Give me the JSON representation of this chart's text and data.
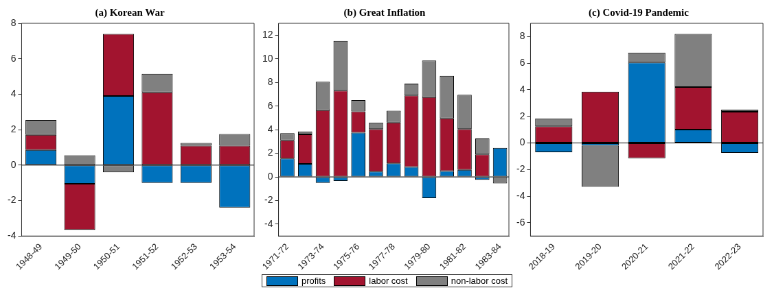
{
  "chart_data": [
    {
      "type": "bar",
      "title": "(a) Korean War",
      "stacked": true,
      "categories": [
        "1948-49",
        "1949-50",
        "1950-51",
        "1951-52",
        "1952-53",
        "1953-54"
      ],
      "ylim": [
        -4,
        8
      ],
      "yticks": [
        -4,
        -2,
        0,
        2,
        4,
        6,
        8
      ],
      "grid": false,
      "ref_lines": [
        {
          "axis": "y",
          "value": 0,
          "color": "#000000"
        }
      ],
      "series": [
        {
          "color": "#0072bd",
          "values": [
            0.85,
            -1.05,
            3.9,
            -1.0,
            -1.0,
            -2.4
          ]
        },
        {
          "color": "#a2142f",
          "values": [
            0.85,
            -2.6,
            3.5,
            4.1,
            1.1,
            1.1
          ]
        },
        {
          "color": "#808080",
          "values": [
            0.85,
            0.55,
            -0.4,
            1.05,
            0.15,
            0.65
          ]
        }
      ]
    },
    {
      "type": "bar",
      "title": "(b) Great Inflation",
      "stacked": true,
      "categories": [
        "1971-72",
        null,
        "1973-74",
        null,
        "1975-76",
        null,
        "1977-78",
        null,
        "1979-80",
        null,
        "1981-82",
        null,
        "1983-84"
      ],
      "ylim": [
        -5,
        13
      ],
      "yticks": [
        -4,
        -2,
        0,
        2,
        4,
        6,
        8,
        10,
        12
      ],
      "grid": false,
      "legend": "bottom",
      "ref_lines": [
        {
          "axis": "y",
          "value": 0,
          "color": "#000000"
        }
      ],
      "series": [
        {
          "name": "profits",
          "color": "#0072bd",
          "values": [
            1.55,
            1.1,
            -0.5,
            -0.35,
            3.75,
            0.45,
            1.15,
            0.85,
            -1.8,
            0.5,
            0.6,
            -0.25,
            2.45
          ]
        },
        {
          "name": "labor cost",
          "color": "#a2142f",
          "values": [
            1.55,
            2.5,
            5.65,
            7.3,
            1.8,
            3.6,
            3.45,
            6.05,
            6.75,
            4.45,
            3.45,
            1.9,
            0
          ]
        },
        {
          "name": "non-labor cost",
          "color": "#808080",
          "values": [
            0.6,
            0.25,
            2.4,
            4.2,
            0.95,
            0.55,
            1.0,
            1.0,
            3.1,
            3.6,
            2.9,
            1.35,
            -0.55
          ]
        }
      ]
    },
    {
      "type": "bar",
      "title": "(c) Covid-19 Pandemic",
      "stacked": true,
      "categories": [
        "2018-19",
        "2019-20",
        "2020-21",
        "2021-22",
        "2022-23"
      ],
      "ylim": [
        -7,
        9
      ],
      "yticks": [
        -6,
        -4,
        -2,
        0,
        2,
        4,
        6,
        8
      ],
      "grid": false,
      "ref_lines": [
        {
          "axis": "y",
          "value": 0,
          "color": "#000000"
        }
      ],
      "series": [
        {
          "color": "#0072bd",
          "values": [
            -0.7,
            -0.2,
            6.05,
            1.0,
            -0.75
          ]
        },
        {
          "color": "#a2142f",
          "values": [
            1.25,
            3.85,
            -1.15,
            3.2,
            2.35
          ]
        },
        {
          "color": "#808080",
          "values": [
            0.6,
            -3.1,
            0.75,
            4.0,
            0.15
          ]
        }
      ]
    }
  ]
}
